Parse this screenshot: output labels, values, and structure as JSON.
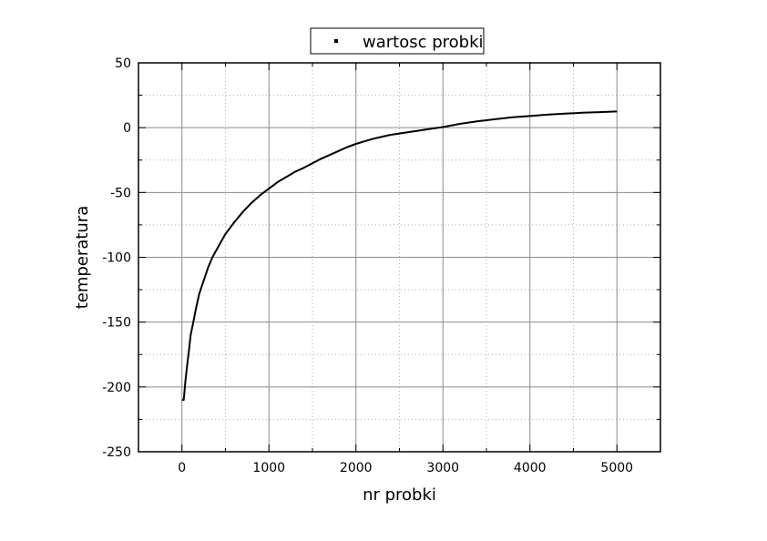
{
  "chart_data": {
    "type": "line",
    "xlabel": "nr probki",
    "ylabel": "temperatura",
    "xlim": [
      -500,
      5500
    ],
    "ylim": [
      -250,
      50
    ],
    "x_ticks": [
      0,
      1000,
      2000,
      3000,
      4000,
      5000
    ],
    "y_ticks": [
      50,
      0,
      -50,
      -100,
      -150,
      -200,
      -250
    ],
    "x_tick_labels": [
      "0",
      "1000",
      "2000",
      "3000",
      "4000",
      "5000"
    ],
    "y_tick_labels": [
      "50",
      "0",
      "-50",
      "-100",
      "-150",
      "-200",
      "-250"
    ],
    "grid": true,
    "legend_position": "top-center",
    "series": [
      {
        "name": "wartosc probki",
        "color": "#000000",
        "marker": "square",
        "x": [
          0,
          20,
          40,
          60,
          80,
          100,
          130,
          160,
          200,
          250,
          300,
          350,
          400,
          450,
          500,
          600,
          700,
          800,
          900,
          1000,
          1100,
          1200,
          1300,
          1400,
          1500,
          1600,
          1700,
          1800,
          1900,
          2000,
          2100,
          2200,
          2300,
          2400,
          2500,
          2600,
          2700,
          2800,
          2900,
          3000,
          3200,
          3400,
          3600,
          3800,
          4000,
          4200,
          4400,
          4600,
          4800,
          5000
        ],
        "y": [
          -210,
          -210,
          -195,
          -183,
          -172,
          -160,
          -150,
          -140,
          -128,
          -118,
          -108,
          -100,
          -94,
          -88,
          -82,
          -73,
          -65,
          -58,
          -52,
          -47,
          -42,
          -38,
          -34,
          -31,
          -27.5,
          -24,
          -21,
          -18,
          -15,
          -12.5,
          -10.5,
          -8.5,
          -7,
          -5.5,
          -4.5,
          -3.5,
          -2.5,
          -1.5,
          -0.5,
          0.5,
          3,
          5,
          6.5,
          8,
          9,
          10,
          10.8,
          11.5,
          12,
          12.5
        ]
      }
    ]
  }
}
